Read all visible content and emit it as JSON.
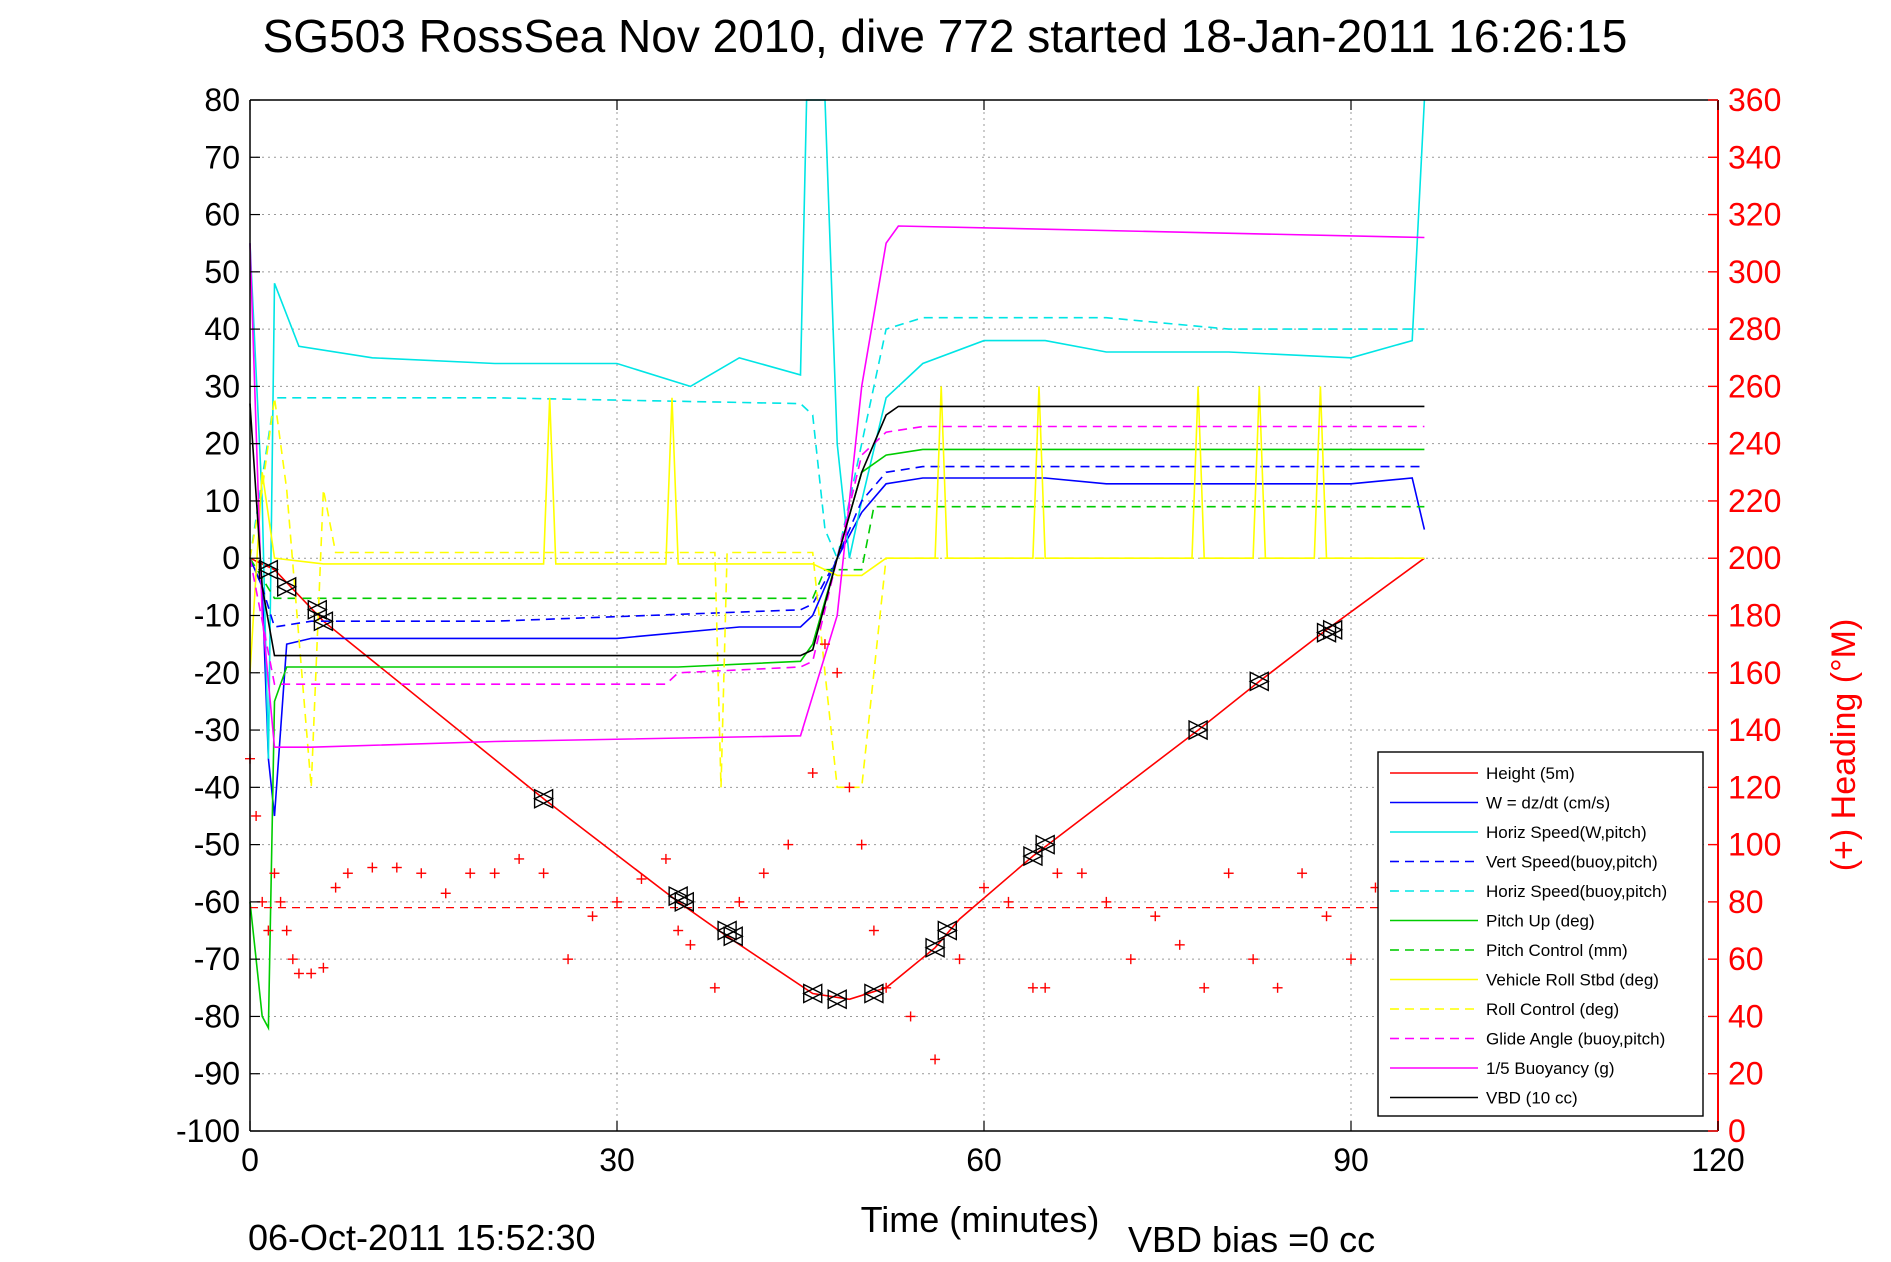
{
  "chart_data": {
    "type": "line",
    "title": "SG503 RossSea Nov 2010, dive 772 started 18-Jan-2011 16:26:15",
    "xlabel": "Time (minutes)",
    "ylabel": "",
    "ylabel_right": "(+) Heading (°M)",
    "xlim": [
      0,
      120
    ],
    "ylim": [
      -100,
      80
    ],
    "ylim_right": [
      0,
      360
    ],
    "x_ticks": [
      "0",
      "30",
      "60",
      "90",
      "120"
    ],
    "y_ticks": [
      "80",
      "70",
      "60",
      "50",
      "40",
      "30",
      "20",
      "10",
      "0",
      "-10",
      "-20",
      "-30",
      "-40",
      "-50",
      "-60",
      "-70",
      "-80",
      "-90",
      "-100"
    ],
    "y_ticks_right": [
      "360",
      "340",
      "320",
      "300",
      "280",
      "260",
      "240",
      "220",
      "200",
      "180",
      "160",
      "140",
      "120",
      "100",
      "80",
      "60",
      "40",
      "20",
      "0"
    ],
    "grid": true,
    "legend_position": "bottom-right",
    "series": [
      {
        "name": "Height (5m)",
        "color": "#ff0000",
        "style": "solid",
        "x": [
          0,
          2,
          6,
          24,
          35,
          39,
          46,
          49,
          52,
          56,
          58,
          64,
          77.5,
          82.5,
          88,
          96
        ],
        "y": [
          0,
          -2,
          -11,
          -42,
          -60,
          -66,
          -76,
          -77,
          -75,
          -68,
          -63,
          -52,
          -30,
          -21.5,
          -12.5,
          0
        ]
      },
      {
        "name": "W = dz/dt (cm/s)",
        "color": "#0000ff",
        "style": "solid",
        "x": [
          0,
          1,
          1.5,
          2,
          3,
          5,
          10,
          20,
          30,
          40,
          45,
          46,
          47,
          48,
          50,
          52,
          55,
          60,
          65,
          70,
          80,
          90,
          95,
          96
        ],
        "y": [
          0,
          -5,
          -35,
          -45,
          -15,
          -14,
          -14,
          -14,
          -14,
          -12,
          -12,
          -10,
          -5,
          0,
          8,
          13,
          14,
          14,
          14,
          13,
          13,
          13,
          14,
          5
        ]
      },
      {
        "name": "Horiz Speed(W,pitch)",
        "color": "#00e5e5",
        "style": "solid",
        "x": [
          0,
          1,
          1.5,
          2,
          4,
          10,
          20,
          30,
          36,
          40,
          45,
          45.5,
          46,
          47,
          48,
          49,
          50,
          52,
          55,
          60,
          65,
          70,
          80,
          90,
          95,
          96
        ],
        "y": [
          55,
          10,
          -35,
          48,
          37,
          35,
          34,
          34,
          30,
          35,
          32,
          80,
          80,
          80,
          20,
          0,
          10,
          28,
          34,
          38,
          38,
          36,
          36,
          35,
          38,
          80
        ]
      },
      {
        "name": "Vert Speed(buoy,pitch)",
        "color": "#0000ff",
        "style": "dashed",
        "x": [
          0,
          1,
          2,
          5,
          20,
          45,
          46,
          48,
          50,
          52,
          55,
          60,
          70,
          80,
          90,
          96
        ],
        "y": [
          0,
          -5,
          -12,
          -11,
          -11,
          -9,
          -8,
          0,
          10,
          15,
          16,
          16,
          16,
          16,
          16,
          16
        ]
      },
      {
        "name": "Horiz Speed(buoy,pitch)",
        "color": "#00e5e5",
        "style": "dashed",
        "x": [
          0,
          2,
          5,
          20,
          45,
          46,
          47,
          48,
          50,
          52,
          55,
          60,
          70,
          80,
          90,
          96
        ],
        "y": [
          0,
          28,
          28,
          28,
          27,
          25,
          5,
          0,
          20,
          40,
          42,
          42,
          42,
          40,
          40,
          40
        ]
      },
      {
        "name": "Pitch Up (deg)",
        "color": "#00cc00",
        "style": "solid",
        "x": [
          0,
          1,
          1.5,
          2,
          3,
          5,
          20,
          35,
          45,
          46,
          48,
          50,
          52,
          55,
          60,
          70,
          80,
          90,
          96
        ],
        "y": [
          -60,
          -80,
          -82,
          -25,
          -19,
          -19,
          -19,
          -19,
          -18,
          -15,
          0,
          15,
          18,
          19,
          19,
          19,
          19,
          19,
          19
        ]
      },
      {
        "name": "Pitch Control (mm)",
        "color": "#00cc00",
        "style": "dashed",
        "x": [
          0,
          2,
          3,
          46,
          47,
          50,
          51,
          52,
          96
        ],
        "y": [
          0,
          -7,
          -7,
          -7,
          -2,
          -2,
          9,
          9,
          9
        ]
      },
      {
        "name": "Vehicle Roll Stbd (deg)",
        "color": "#ffff00",
        "style": "solid",
        "x": [
          0,
          1,
          2,
          6,
          24,
          24.5,
          25,
          34,
          34.5,
          35,
          45,
          46,
          48,
          50,
          52,
          56,
          56.5,
          57,
          64,
          64.5,
          65,
          77,
          77.5,
          78,
          82,
          82.5,
          83,
          87,
          87.5,
          88,
          96
        ],
        "y": [
          -20,
          15,
          0,
          -1,
          -1,
          28,
          -1,
          -1,
          28,
          -1,
          -1,
          -1,
          -3,
          -3,
          0,
          0,
          30,
          0,
          0,
          30,
          0,
          0,
          30,
          0,
          0,
          30,
          0,
          0,
          30,
          0,
          0
        ]
      },
      {
        "name": "Roll Control (deg)",
        "color": "#ffff00",
        "style": "dashed",
        "x": [
          0,
          1,
          2,
          3,
          5,
          6,
          7,
          20,
          38,
          38.5,
          39,
          46,
          47,
          48,
          50,
          51,
          52,
          55,
          60,
          70,
          80,
          90,
          96
        ],
        "y": [
          0,
          12,
          28,
          12,
          -40,
          12,
          1,
          1,
          1,
          -40,
          1,
          1,
          -20,
          -40,
          -40,
          -20,
          0,
          0,
          0,
          0,
          0,
          0,
          0
        ]
      },
      {
        "name": "Glide Angle (buoy,pitch)",
        "color": "#ff00ff",
        "style": "dashed",
        "x": [
          0,
          2,
          5,
          20,
          34,
          35,
          45,
          46,
          48,
          50,
          52,
          55,
          60,
          70,
          80,
          90,
          96
        ],
        "y": [
          0,
          -22,
          -22,
          -22,
          -22,
          -20,
          -19,
          -18,
          0,
          18,
          22,
          23,
          23,
          23,
          23,
          23,
          23
        ]
      },
      {
        "name": "1/5 Buoyancy (g)",
        "color": "#ff00ff",
        "style": "solid",
        "x": [
          0,
          1,
          2,
          5,
          20,
          45,
          48,
          50,
          52,
          53,
          96
        ],
        "y": [
          55,
          -10,
          -33,
          -33,
          -32,
          -31,
          -10,
          30,
          55,
          58,
          56
        ]
      },
      {
        "name": "VBD (10 cc)",
        "color": "#000000",
        "style": "solid",
        "x": [
          0,
          1,
          2,
          3,
          45,
          46,
          48,
          50,
          52,
          53,
          96
        ],
        "y": [
          27,
          -5,
          -17,
          -17,
          -17,
          -16,
          0,
          15,
          25,
          26.5,
          26.5
        ]
      }
    ],
    "heading": {
      "name": "Heading",
      "axis": "right",
      "color": "#ff0000",
      "marker": "+",
      "mean": 78,
      "x": [
        0,
        0.5,
        1,
        1.5,
        2,
        2.5,
        3,
        3.5,
        4,
        5,
        6,
        7,
        8,
        10,
        12,
        14,
        16,
        18,
        20,
        22,
        24,
        26,
        28,
        30,
        32,
        34,
        35,
        36,
        38,
        40,
        42,
        44,
        46,
        47,
        48,
        49,
        50,
        51,
        52,
        54,
        56,
        58,
        60,
        62,
        64,
        65,
        66,
        68,
        70,
        72,
        74,
        76,
        78,
        80,
        82,
        84,
        86,
        88,
        90,
        92,
        94,
        96
      ],
      "y": [
        130,
        110,
        80,
        70,
        90,
        80,
        70,
        60,
        55,
        55,
        57,
        85,
        90,
        92,
        92,
        90,
        83,
        90,
        90,
        95,
        90,
        60,
        75,
        80,
        88,
        95,
        70,
        65,
        50,
        80,
        90,
        100,
        125,
        170,
        160,
        120,
        100,
        70,
        50,
        40,
        25,
        60,
        85,
        80,
        50,
        50,
        90,
        90,
        80,
        60,
        75,
        65,
        50,
        90,
        60,
        50,
        90,
        75,
        60,
        85,
        80,
        82
      ]
    },
    "markers": {
      "name": "Height samples",
      "color": "#000000",
      "x": [
        1.5,
        3,
        5.5,
        6,
        24,
        35,
        35.5,
        39,
        39.5,
        46,
        48,
        51,
        56,
        57,
        64,
        65,
        77.5,
        82.5,
        88,
        88.5
      ],
      "y": [
        -2,
        -5,
        -9,
        -11,
        -42,
        -59,
        -60,
        -65,
        -66,
        -76,
        -77,
        -76,
        -68,
        -65,
        -52,
        -50,
        -30,
        -21.5,
        -13,
        -12.5
      ]
    },
    "footer_left": "06-Oct-2011 15:52:30",
    "footer_right": "VBD bias =0 cc"
  }
}
